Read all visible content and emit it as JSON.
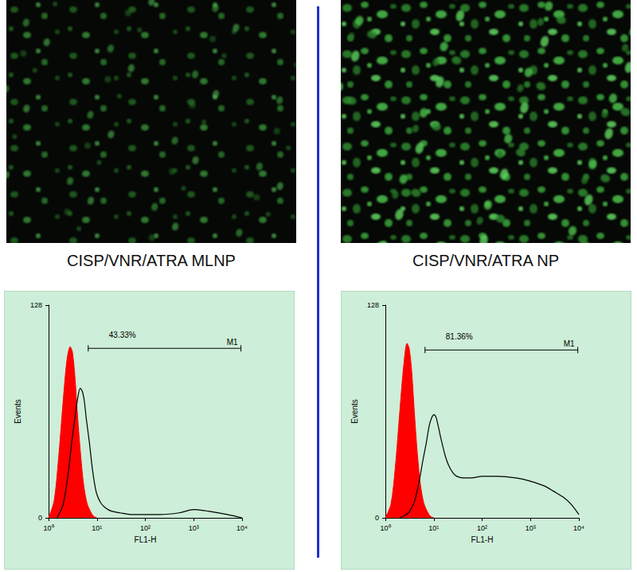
{
  "chart_data": [
    {
      "type": "line",
      "title": "CISP/VNR/ATRA MLNP",
      "x_label": "FL1-H",
      "y_label": "Events",
      "log": "x",
      "grid": false,
      "xlim": [
        1,
        10000
      ],
      "xticks": [
        {
          "value": 1,
          "label": "10⁰"
        },
        {
          "value": 10,
          "label": "10¹"
        },
        {
          "value": 100,
          "label": "10²"
        },
        {
          "value": 1000,
          "label": "10³"
        },
        {
          "value": 10000,
          "label": "10⁴"
        }
      ],
      "ylim": [
        0,
        128
      ],
      "yticks": [
        0,
        128
      ],
      "series": [
        {
          "type": "area",
          "color": "#ff0000",
          "x": [
            1,
            1.3,
            1.6,
            2,
            2.4,
            2.8,
            3.1,
            3.5,
            4,
            4.6,
            5.3,
            6.2,
            7.3,
            8.5,
            10
          ],
          "values": [
            0,
            10,
            35,
            70,
            95,
            103,
            100,
            85,
            60,
            38,
            20,
            9,
            4,
            1,
            0
          ]
        },
        {
          "type": "line",
          "color": "#000000",
          "x": [
            1.5,
            2,
            2.5,
            3,
            3.5,
            4,
            4.5,
            5,
            5.5,
            6,
            7,
            8,
            9,
            10,
            12,
            15,
            20,
            30,
            50,
            100,
            200,
            500,
            1000,
            2000,
            5000,
            10000
          ],
          "values": [
            0,
            8,
            25,
            45,
            60,
            72,
            78,
            76,
            70,
            60,
            45,
            30,
            20,
            14,
            9,
            6,
            4,
            3,
            2,
            2,
            2,
            3,
            5,
            4,
            2,
            0
          ]
        }
      ],
      "gate": {
        "label": "M1",
        "x": [
          6.6,
          9500
        ],
        "y": 102,
        "text": "43.33%"
      }
    },
    {
      "type": "line",
      "title": "CISP/VNR/ATRA NP",
      "x_label": "FL1-H",
      "y_label": "Events",
      "log": "x",
      "grid": false,
      "xlim": [
        1,
        10000
      ],
      "xticks": [
        {
          "value": 1,
          "label": "10⁰"
        },
        {
          "value": 10,
          "label": "10¹"
        },
        {
          "value": 100,
          "label": "10²"
        },
        {
          "value": 1000,
          "label": "10³"
        },
        {
          "value": 10000,
          "label": "10⁴"
        }
      ],
      "ylim": [
        0,
        128
      ],
      "yticks": [
        0,
        128
      ],
      "series": [
        {
          "type": "area",
          "color": "#ff0000",
          "x": [
            1,
            1.3,
            1.6,
            2,
            2.4,
            2.8,
            3.1,
            3.5,
            4,
            4.6,
            5.3,
            6.2,
            7.3,
            8.5,
            10
          ],
          "values": [
            0,
            8,
            30,
            65,
            92,
            105,
            102,
            88,
            62,
            38,
            20,
            9,
            4,
            1,
            0
          ]
        },
        {
          "type": "line",
          "color": "#000000",
          "x": [
            2,
            3,
            4,
            5,
            6,
            7,
            8,
            9,
            10,
            11,
            12,
            14,
            17,
            20,
            25,
            30,
            40,
            60,
            100,
            200,
            500,
            1000,
            2000,
            3000,
            5000,
            7000,
            10000
          ],
          "values": [
            0,
            3,
            10,
            22,
            35,
            45,
            55,
            60,
            62,
            61,
            57,
            48,
            38,
            32,
            27,
            25,
            24,
            24,
            25,
            25,
            24,
            22,
            19,
            16,
            12,
            8,
            2
          ]
        }
      ],
      "gate": {
        "label": "M1",
        "x": [
          6.6,
          9500
        ],
        "y": 101,
        "text": "81.36%"
      }
    }
  ]
}
